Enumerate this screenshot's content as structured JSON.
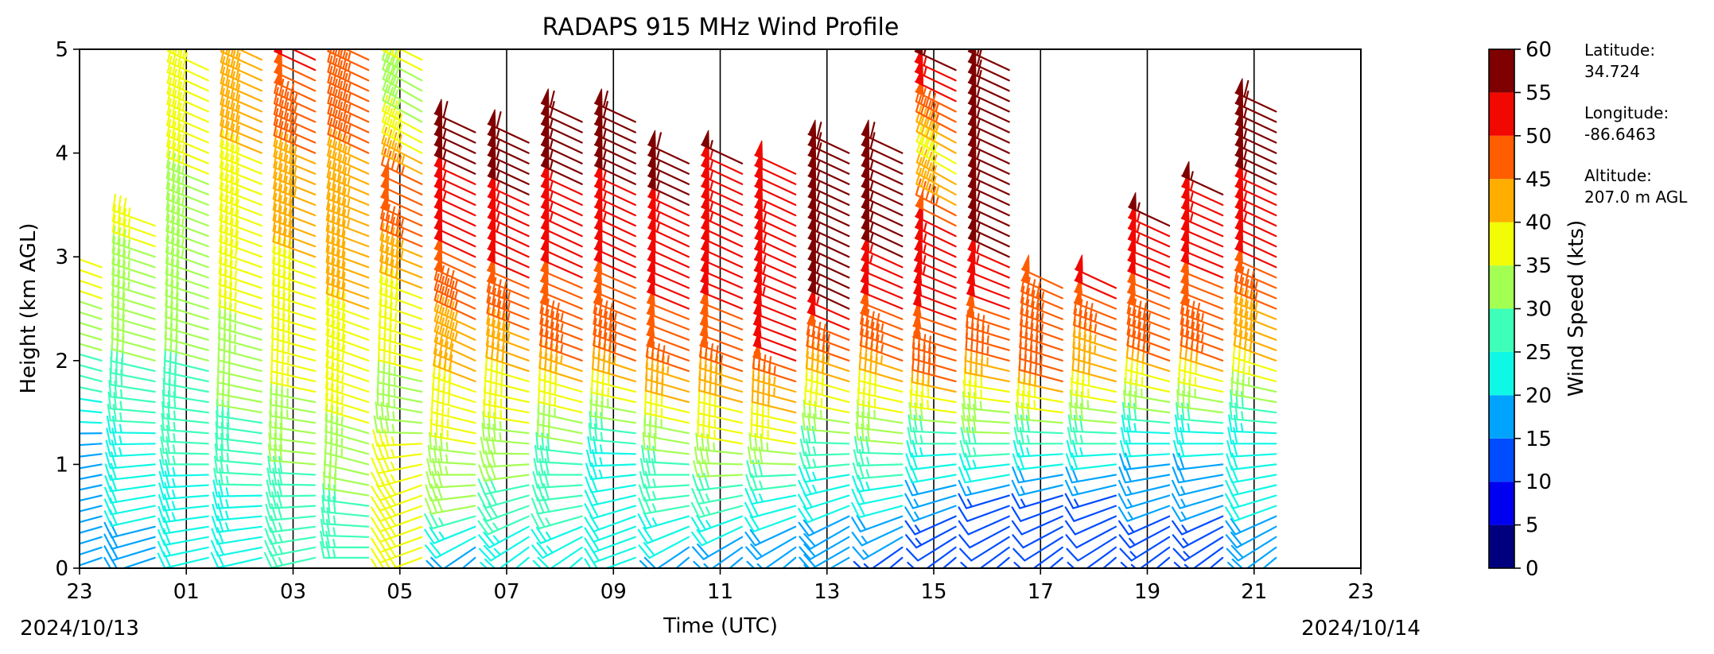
{
  "chart_data": {
    "type": "wind_barb_profile",
    "title": "RADAPS 915 MHz Wind Profile",
    "xlabel": "Time (UTC)",
    "ylabel": "Height (km AGL)",
    "x_tick_labels": [
      "23",
      "01",
      "03",
      "05",
      "07",
      "09",
      "11",
      "13",
      "15",
      "17",
      "19",
      "21",
      "23"
    ],
    "x_range_hours": [
      23,
      47
    ],
    "y_ticks": [
      0,
      1,
      2,
      3,
      4,
      5
    ],
    "ylim": [
      0,
      5
    ],
    "date_start": "2024/10/13",
    "date_end": "2024/10/14",
    "grid": "vertical lines every 2 hours",
    "colorbar": {
      "label": "Wind Speed (kts)",
      "ticks": [
        0,
        5,
        10,
        15,
        20,
        25,
        30,
        35,
        40,
        45,
        50,
        55,
        60
      ],
      "range": [
        0,
        60
      ],
      "colormap": "jet",
      "bins": [
        {
          "min": 0,
          "max": 5,
          "color": "#00007f"
        },
        {
          "min": 5,
          "max": 10,
          "color": "#0000f1"
        },
        {
          "min": 10,
          "max": 15,
          "color": "#004cff"
        },
        {
          "min": 15,
          "max": 20,
          "color": "#00a4ff"
        },
        {
          "min": 20,
          "max": 25,
          "color": "#0ff8e6"
        },
        {
          "min": 25,
          "max": 30,
          "color": "#3dffb9"
        },
        {
          "min": 30,
          "max": 35,
          "color": "#a4ff53"
        },
        {
          "min": 35,
          "max": 40,
          "color": "#f1fc06"
        },
        {
          "min": 40,
          "max": 45,
          "color": "#ffae00"
        },
        {
          "min": 45,
          "max": 50,
          "color": "#ff5d00"
        },
        {
          "min": 50,
          "max": 55,
          "color": "#f10800"
        },
        {
          "min": 55,
          "max": 60,
          "color": "#7f0000"
        }
      ]
    },
    "station_info": [
      {
        "label": "Latitude:",
        "value": "34.724"
      },
      {
        "label": "Longitude:",
        "value": "-86.6463"
      },
      {
        "label": "Altitude:",
        "value": "207.0 m AGL"
      }
    ],
    "profiles": [
      {
        "time_h": 23.5,
        "top_km": 2.9,
        "layers": [
          [
            0.0,
            15,
            250
          ],
          [
            1.0,
            15,
            260
          ],
          [
            1.8,
            28,
            285
          ],
          [
            2.9,
            38,
            290
          ]
        ]
      },
      {
        "time_h": 24.5,
        "top_km": 3.3,
        "layers": [
          [
            0.0,
            18,
            250
          ],
          [
            1.0,
            22,
            265
          ],
          [
            2.0,
            30,
            285
          ],
          [
            3.3,
            36,
            290
          ]
        ]
      },
      {
        "time_h": 25.5,
        "top_km": 4.8,
        "layers": [
          [
            0.0,
            20,
            255
          ],
          [
            1.0,
            25,
            270
          ],
          [
            2.0,
            30,
            285
          ],
          [
            3.0,
            33,
            290
          ],
          [
            4.8,
            38,
            295
          ]
        ]
      },
      {
        "time_h": 26.5,
        "top_km": 5.0,
        "layers": [
          [
            0.0,
            20,
            255
          ],
          [
            1.0,
            27,
            275
          ],
          [
            2.0,
            33,
            285
          ],
          [
            3.0,
            38,
            290
          ],
          [
            5.0,
            42,
            295
          ]
        ]
      },
      {
        "time_h": 27.5,
        "top_km": 5.0,
        "layers": [
          [
            0.0,
            25,
            255
          ],
          [
            1.0,
            30,
            275
          ],
          [
            2.0,
            38,
            285
          ],
          [
            3.0,
            40,
            290
          ],
          [
            4.5,
            48,
            295
          ],
          [
            5.0,
            52,
            295
          ]
        ]
      },
      {
        "time_h": 28.5,
        "top_km": 5.0,
        "layers": [
          [
            0.2,
            25,
            270
          ],
          [
            1.0,
            33,
            285
          ],
          [
            2.0,
            38,
            290
          ],
          [
            3.0,
            42,
            290
          ],
          [
            4.0,
            45,
            295
          ],
          [
            5.0,
            47,
            295
          ]
        ]
      },
      {
        "time_h": 29.5,
        "top_km": 5.0,
        "layers": [
          [
            0.8,
            38,
            250
          ],
          [
            1.5,
            33,
            280
          ],
          [
            2.5,
            38,
            290
          ],
          [
            3.5,
            50,
            295
          ],
          [
            4.5,
            30,
            300
          ],
          [
            5.0,
            42,
            295
          ]
        ]
      },
      {
        "time_h": 30.5,
        "top_km": 4.2,
        "layers": [
          [
            0.1,
            15,
            230
          ],
          [
            0.6,
            30,
            260
          ],
          [
            1.2,
            35,
            280
          ],
          [
            2.0,
            42,
            295
          ],
          [
            3.0,
            50,
            295
          ],
          [
            4.2,
            58,
            295
          ]
        ]
      },
      {
        "time_h": 31.5,
        "top_km": 4.1,
        "layers": [
          [
            0.1,
            20,
            230
          ],
          [
            0.6,
            28,
            250
          ],
          [
            1.2,
            33,
            275
          ],
          [
            2.0,
            42,
            290
          ],
          [
            3.0,
            52,
            295
          ],
          [
            4.1,
            58,
            295
          ]
        ]
      },
      {
        "time_h": 32.5,
        "top_km": 4.3,
        "layers": [
          [
            0.1,
            20,
            230
          ],
          [
            0.6,
            28,
            260
          ],
          [
            1.2,
            30,
            280
          ],
          [
            2.0,
            45,
            290
          ],
          [
            3.0,
            52,
            295
          ],
          [
            4.3,
            58,
            295
          ]
        ]
      },
      {
        "time_h": 33.5,
        "top_km": 4.3,
        "layers": [
          [
            0.5,
            20,
            250
          ],
          [
            1.2,
            25,
            275
          ],
          [
            2.0,
            45,
            290
          ],
          [
            3.0,
            52,
            295
          ],
          [
            4.3,
            58,
            295
          ]
        ]
      },
      {
        "time_h": 34.5,
        "top_km": 3.9,
        "layers": [
          [
            0.1,
            18,
            230
          ],
          [
            0.6,
            25,
            260
          ],
          [
            1.2,
            32,
            280
          ],
          [
            2.0,
            48,
            290
          ],
          [
            3.0,
            52,
            295
          ],
          [
            3.9,
            58,
            295
          ]
        ]
      },
      {
        "time_h": 35.5,
        "top_km": 3.9,
        "layers": [
          [
            0.1,
            15,
            230
          ],
          [
            0.6,
            25,
            255
          ],
          [
            1.2,
            35,
            280
          ],
          [
            2.0,
            48,
            290
          ],
          [
            3.0,
            52,
            295
          ],
          [
            3.9,
            55,
            295
          ]
        ]
      },
      {
        "time_h": 36.5,
        "top_km": 3.8,
        "layers": [
          [
            0.1,
            15,
            230
          ],
          [
            0.6,
            22,
            255
          ],
          [
            1.2,
            35,
            280
          ],
          [
            2.0,
            50,
            290
          ],
          [
            3.0,
            55,
            295
          ],
          [
            3.8,
            50,
            295
          ]
        ]
      },
      {
        "time_h": 37.5,
        "top_km": 4.0,
        "layers": [
          [
            0.4,
            18,
            240
          ],
          [
            1.0,
            25,
            265
          ],
          [
            1.6,
            38,
            285
          ],
          [
            2.5,
            55,
            295
          ],
          [
            4.0,
            58,
            295
          ]
        ]
      },
      {
        "time_h": 38.5,
        "top_km": 4.0,
        "layers": [
          [
            0.1,
            12,
            230
          ],
          [
            0.6,
            20,
            255
          ],
          [
            1.2,
            30,
            275
          ],
          [
            2.0,
            45,
            290
          ],
          [
            3.0,
            55,
            295
          ],
          [
            4.0,
            58,
            295
          ]
        ]
      },
      {
        "time_h": 39.5,
        "top_km": 4.8,
        "layers": [
          [
            0.1,
            10,
            230
          ],
          [
            0.6,
            15,
            250
          ],
          [
            1.2,
            25,
            270
          ],
          [
            1.8,
            45,
            285
          ],
          [
            3.0,
            55,
            295
          ],
          [
            3.8,
            38,
            300
          ],
          [
            4.7,
            55,
            295
          ]
        ]
      },
      {
        "time_h": 40.5,
        "top_km": 4.8,
        "layers": [
          [
            0.1,
            10,
            230
          ],
          [
            0.6,
            12,
            250
          ],
          [
            1.2,
            28,
            270
          ],
          [
            2.0,
            45,
            285
          ],
          [
            3.0,
            55,
            295
          ],
          [
            4.8,
            58,
            295
          ]
        ]
      },
      {
        "time_h": 41.5,
        "top_km": 2.7,
        "layers": [
          [
            0.1,
            10,
            230
          ],
          [
            0.6,
            12,
            250
          ],
          [
            1.2,
            25,
            270
          ],
          [
            1.8,
            45,
            285
          ],
          [
            2.7,
            48,
            295
          ]
        ]
      },
      {
        "time_h": 42.5,
        "top_km": 2.7,
        "layers": [
          [
            0.1,
            10,
            230
          ],
          [
            0.6,
            12,
            250
          ],
          [
            1.2,
            25,
            270
          ],
          [
            1.8,
            40,
            285
          ],
          [
            2.7,
            52,
            295
          ]
        ]
      },
      {
        "time_h": 43.5,
        "top_km": 3.3,
        "layers": [
          [
            0.1,
            12,
            230
          ],
          [
            0.6,
            15,
            250
          ],
          [
            1.2,
            22,
            270
          ],
          [
            2.0,
            45,
            290
          ],
          [
            3.3,
            55,
            295
          ]
        ]
      },
      {
        "time_h": 44.5,
        "top_km": 3.6,
        "layers": [
          [
            0.1,
            12,
            230
          ],
          [
            0.6,
            15,
            250
          ],
          [
            1.2,
            22,
            270
          ],
          [
            2.0,
            45,
            290
          ],
          [
            3.6,
            55,
            295
          ]
        ]
      },
      {
        "time_h": 45.5,
        "top_km": 4.4,
        "layers": [
          [
            0.1,
            18,
            230
          ],
          [
            0.6,
            20,
            250
          ],
          [
            1.2,
            22,
            270
          ],
          [
            2.0,
            40,
            290
          ],
          [
            3.0,
            52,
            295
          ],
          [
            4.4,
            58,
            295
          ]
        ]
      }
    ]
  }
}
